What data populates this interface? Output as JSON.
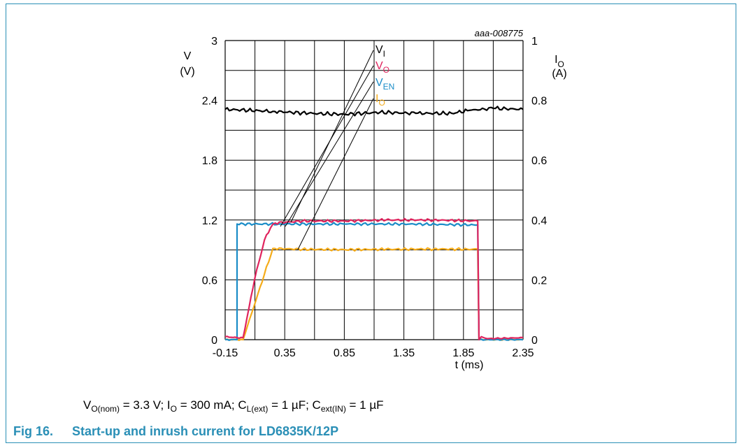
{
  "colors": {
    "frame": "#2a8fb6",
    "vi": "#000000",
    "vo": "#e0245e",
    "ven": "#1a8cc7",
    "io": "#f5ac1a",
    "caption": "#2a8fb6"
  },
  "conditions": {
    "v": "V",
    "v_sub": "O(nom)",
    "v_val": " = 3.3 V; I",
    "i_sub": "O",
    "i_val": " = 300 mA; C",
    "cl_sub": "L(ext)",
    "cl_val": " = 1 µF; C",
    "cin_sub": "ext(IN)",
    "cin_val": " = 1 µF"
  },
  "caption": {
    "number": "Fig 16.",
    "title": "Start-up and inrush current for LD6835K/12P"
  },
  "chart_data": {
    "type": "line",
    "code": "aaa-008775",
    "xlabel": "t (ms)",
    "ylabel_left_1": "V",
    "ylabel_left_2": "(V)",
    "ylabel_right_1": "I",
    "ylabel_right_sub": "O",
    "ylabel_right_2": "(A)",
    "xlim": [
      -0.15,
      2.35
    ],
    "ylim_left": [
      0,
      3
    ],
    "ylim_right": [
      0,
      1
    ],
    "grid": true,
    "x_ticks": [
      "-0.15",
      "0.35",
      "0.85",
      "1.35",
      "1.85",
      "2.35"
    ],
    "y_ticks_left": [
      "0",
      "0.6",
      "1.2",
      "1.8",
      "2.4",
      "3"
    ],
    "y_ticks_right": [
      "0",
      "0.2",
      "0.4",
      "0.6",
      "0.8",
      "1"
    ],
    "legend": [
      {
        "key": "vi",
        "label": "V",
        "sub": "I"
      },
      {
        "key": "vo",
        "label": "V",
        "sub": "O"
      },
      {
        "key": "ven",
        "label": "V",
        "sub": "EN"
      },
      {
        "key": "io",
        "label": "I",
        "sub": "O"
      }
    ],
    "series": [
      {
        "key": "vi",
        "axis": "left",
        "x": [
          -0.15,
          0.25,
          0.55,
          0.85,
          1.15,
          1.45,
          1.75,
          1.9,
          2.1,
          2.35
        ],
        "y": [
          2.31,
          2.29,
          2.27,
          2.26,
          2.28,
          2.27,
          2.27,
          2.3,
          2.32,
          2.31
        ]
      },
      {
        "key": "vo",
        "axis": "left",
        "x": [
          -0.15,
          -0.05,
          0.0,
          0.1,
          0.18,
          0.23,
          0.27,
          0.5,
          0.85,
          1.2,
          1.6,
          1.97,
          1.98,
          2.0,
          2.05,
          2.35
        ],
        "y": [
          0.03,
          0.02,
          0.02,
          0.62,
          1.0,
          1.12,
          1.17,
          1.19,
          1.19,
          1.2,
          1.2,
          1.19,
          0.0,
          0.03,
          0.01,
          0.02
        ]
      },
      {
        "key": "ven",
        "axis": "left",
        "x": [
          -0.15,
          -0.05,
          -0.05,
          0.3,
          0.85,
          1.4,
          1.97,
          1.98,
          2.35
        ],
        "y": [
          0.0,
          0.0,
          1.16,
          1.16,
          1.16,
          1.16,
          1.15,
          0.0,
          0.0
        ]
      },
      {
        "key": "io",
        "axis": "right",
        "x": [
          -0.15,
          0.0,
          0.25,
          0.5,
          0.85,
          1.2,
          1.6,
          1.97,
          1.98,
          2.35
        ],
        "y": [
          0.0,
          0.0,
          0.305,
          0.302,
          0.301,
          0.302,
          0.303,
          0.302,
          0.0,
          0.0
        ]
      }
    ]
  }
}
